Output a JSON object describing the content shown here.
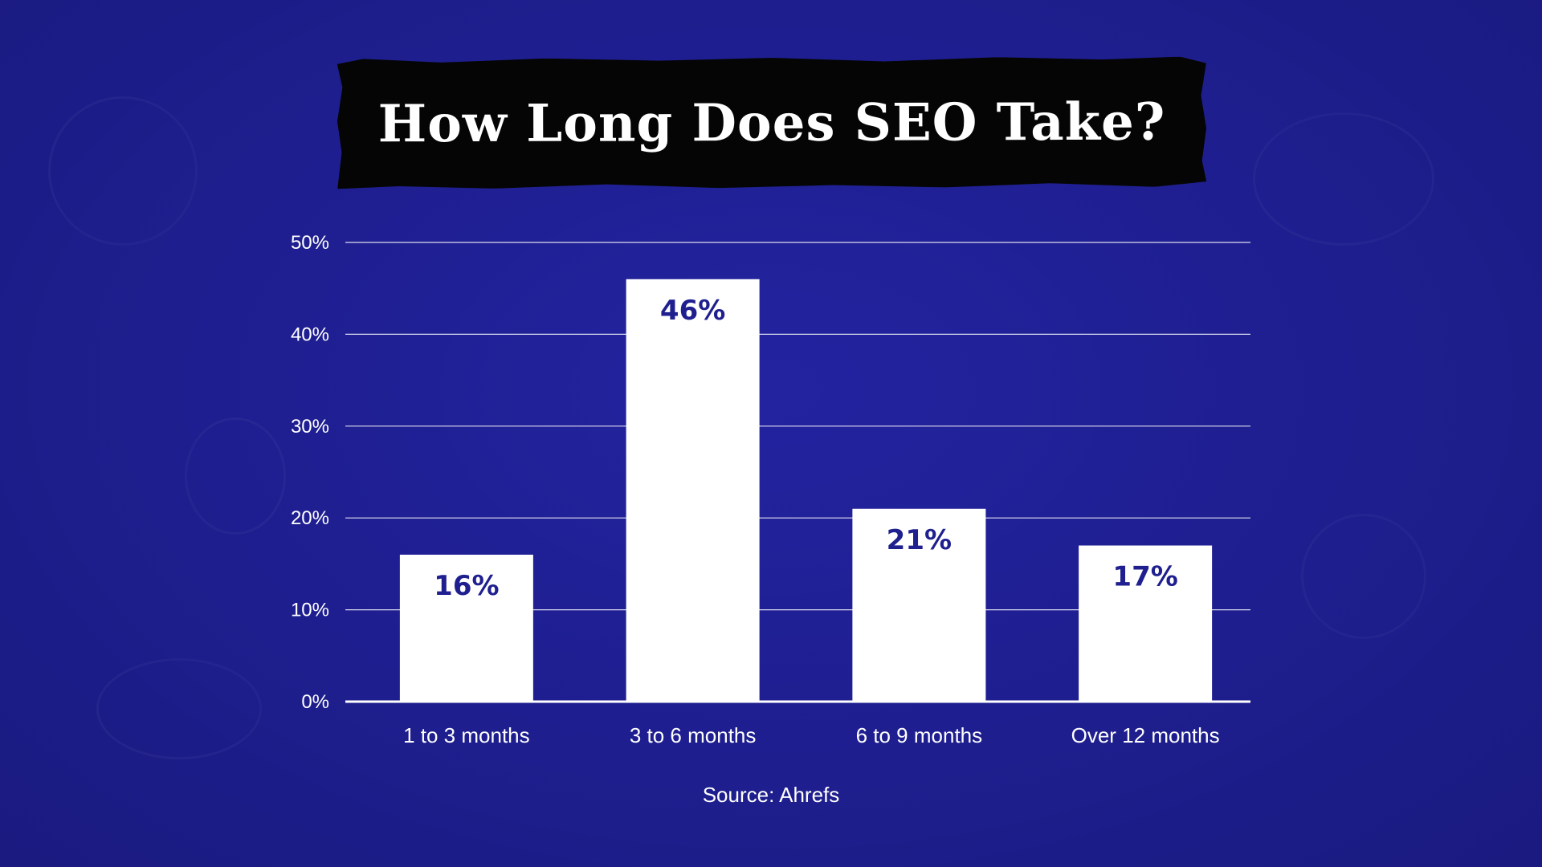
{
  "chart_data": {
    "type": "bar",
    "title": "How Long Does SEO Take?",
    "categories": [
      "1 to 3 months",
      "3 to 6 months",
      "6 to 9 months",
      "Over 12 months"
    ],
    "values": [
      16,
      46,
      21,
      17
    ],
    "value_labels": [
      "16%",
      "46%",
      "21%",
      "17%"
    ],
    "y_ticks": [
      "0%",
      "10%",
      "20%",
      "30%",
      "40%",
      "50%"
    ],
    "ylim": [
      0,
      50
    ],
    "grid": true,
    "xlabel": "",
    "ylabel": "",
    "source": "Source: Ahrefs",
    "colors": {
      "background": "#1f1f91",
      "bar": "#ffffff",
      "value_text": "#1f1f8f",
      "axis": "#ffffff",
      "banner": "#050505"
    }
  }
}
